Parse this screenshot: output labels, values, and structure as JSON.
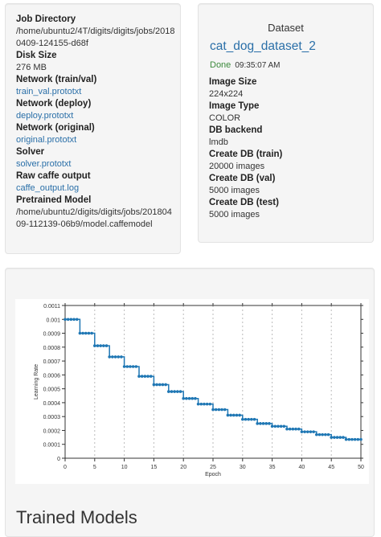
{
  "job": {
    "fields": [
      {
        "label": "Job Directory",
        "value": "/home/ubuntu2/4T/digits/digits/jobs/20180409-124155-d68f",
        "link": false
      },
      {
        "label": "Disk Size",
        "value": "276 MB",
        "link": false
      },
      {
        "label": "Network (train/val)",
        "value": "train_val.prototxt",
        "link": true
      },
      {
        "label": "Network (deploy)",
        "value": "deploy.prototxt",
        "link": true
      },
      {
        "label": "Network (original)",
        "value": "original.prototxt",
        "link": true
      },
      {
        "label": "Solver",
        "value": "solver.prototxt",
        "link": true
      },
      {
        "label": "Raw caffe output",
        "value": "caffe_output.log",
        "link": true
      },
      {
        "label": "Pretrained Model",
        "value": "/home/ubuntu2/digits/digits/jobs/20180409-112139-06b9/model.caffemodel",
        "link": false
      }
    ]
  },
  "dataset": {
    "title": "Dataset",
    "name": "cat_dog_dataset_2",
    "status": "Done",
    "time": "09:35:07 AM",
    "fields": [
      {
        "label": "Image Size",
        "value": "224x224"
      },
      {
        "label": "Image Type",
        "value": "COLOR"
      },
      {
        "label": "DB backend",
        "value": "lmdb"
      },
      {
        "label": "Create DB (train)",
        "value": "20000 images"
      },
      {
        "label": "Create DB (val)",
        "value": "5000 images"
      },
      {
        "label": "Create DB (test)",
        "value": "5000 images"
      }
    ]
  },
  "chart_data": {
    "type": "line",
    "title": "",
    "xlabel": "Epoch",
    "ylabel": "Learning Rate",
    "xlim": [
      0,
      50
    ],
    "ylim": [
      0,
      0.0011
    ],
    "xticks": [
      0,
      5,
      10,
      15,
      20,
      25,
      30,
      35,
      40,
      45,
      50
    ],
    "yticks": [
      0,
      0.0001,
      0.0002,
      0.0003,
      0.0004,
      0.0005,
      0.0006,
      0.0007,
      0.0008,
      0.0009,
      0.001,
      0.0011
    ],
    "ytick_labels": [
      "0",
      "0.0001",
      "0.0002",
      "0.0003",
      "0.0004",
      "0.0005",
      "0.0006",
      "0.0007",
      "0.0008",
      "0.0009",
      "0.001",
      "0.0011"
    ],
    "grid": "vertical-dashed",
    "color": "#1f77b4",
    "series": [
      {
        "x": [
          0,
          2.5,
          5,
          7.5,
          10,
          12.5,
          15,
          17.5,
          20,
          22.5,
          25,
          27.5,
          30,
          32.5,
          35,
          37.5,
          40,
          42.5,
          45,
          47.5,
          50
        ],
        "values": [
          0.001,
          0.0009,
          0.00081,
          0.00073,
          0.00066,
          0.00059,
          0.00053,
          0.00048,
          0.00043,
          0.00039,
          0.00035,
          0.00031,
          0.00028,
          0.00025,
          0.00023,
          0.00021,
          0.00019,
          0.00017,
          0.00015,
          0.000135,
          0.000135
        ]
      }
    ]
  },
  "trained_models_title": "Trained Models"
}
